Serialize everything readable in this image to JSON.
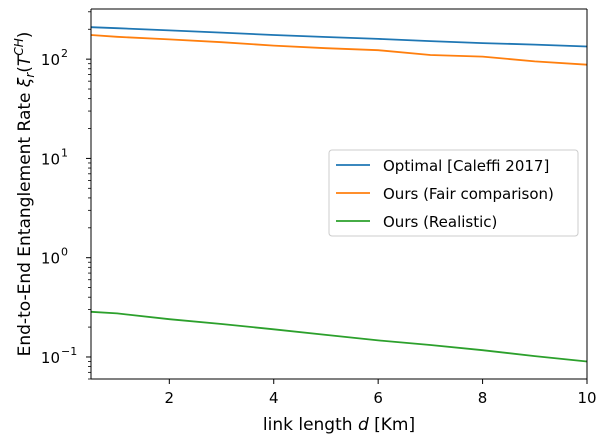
{
  "chart_data": {
    "type": "line",
    "xlabel": "link length d [Km]",
    "ylabel": "End-to-End Entanglement Rate ξr(T^CH)",
    "xscale": "linear",
    "yscale": "log",
    "xlim": [
      0.5,
      10
    ],
    "ylim": [
      0.06,
      320
    ],
    "xticks": [
      2,
      4,
      6,
      8,
      10
    ],
    "xtick_labels": [
      "2",
      "4",
      "6",
      "8",
      "10"
    ],
    "yticks": [
      0.1,
      1,
      10,
      100
    ],
    "ytick_labels": [
      "10",
      "10",
      "10",
      "10"
    ],
    "ytick_exponents": [
      "−1",
      "0",
      "1",
      "2"
    ],
    "grid": false,
    "legend_position": "center-right",
    "series": [
      {
        "name": "Optimal [Caleffi 2017]",
        "color": "#1f77b4",
        "x": [
          0.5,
          1,
          2,
          3,
          4,
          5,
          6,
          7,
          8,
          9,
          10
        ],
        "y": [
          210,
          205,
          195,
          185,
          175,
          167,
          160,
          152,
          145,
          140,
          134
        ]
      },
      {
        "name": "Ours (Fair comparison)",
        "color": "#ff7f0e",
        "x": [
          0.5,
          1,
          2,
          3,
          4,
          5,
          6,
          7,
          8,
          9,
          10
        ],
        "y": [
          175,
          168,
          158,
          148,
          137,
          129,
          123,
          110,
          106,
          95,
          88
        ]
      },
      {
        "name": "Ours (Realistic)",
        "color": "#2ca02c",
        "x": [
          0.5,
          1,
          2,
          3,
          4,
          5,
          6,
          7,
          8,
          9,
          10
        ],
        "y": [
          0.285,
          0.275,
          0.24,
          0.215,
          0.19,
          0.167,
          0.147,
          0.132,
          0.117,
          0.102,
          0.09
        ]
      }
    ]
  }
}
